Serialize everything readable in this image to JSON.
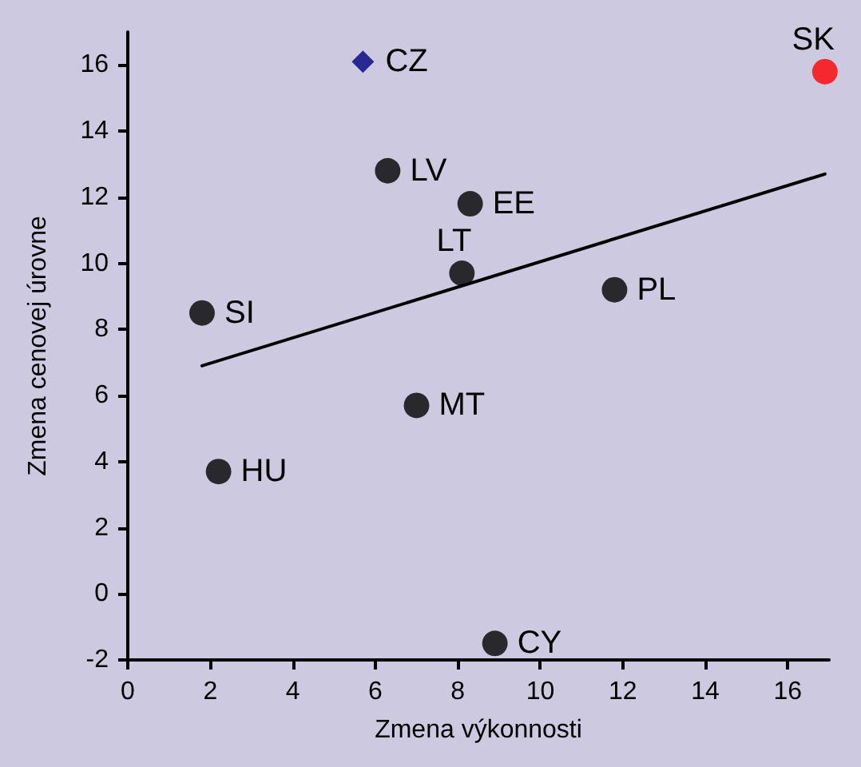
{
  "chart_data": {
    "type": "scatter",
    "xlabel": "Zmena výkonnosti",
    "ylabel": "Zmena cenovej úrovne",
    "xlim": [
      0,
      17
    ],
    "ylim": [
      -2,
      17
    ],
    "xticks": [
      0,
      2,
      4,
      6,
      8,
      10,
      12,
      14,
      16
    ],
    "yticks": [
      -2,
      0,
      2,
      4,
      6,
      8,
      10,
      12,
      14,
      16
    ],
    "grid": false,
    "marker": "circle",
    "series": [
      {
        "color": "#000000",
        "x": [
          1.8,
          2.2,
          7.0,
          8.9,
          8.1,
          6.3,
          8.3,
          11.8
        ],
        "values": [
          8.5,
          3.7,
          5.7,
          -1.5,
          9.7,
          12.8,
          11.8,
          9.2
        ]
      },
      {
        "color": "#000080",
        "marker": "diamond",
        "x": [
          5.7
        ],
        "values": [
          16.1
        ]
      },
      {
        "color": "#ff0000",
        "x": [
          16.9
        ],
        "values": [
          15.8
        ]
      },
      {
        "type": "line",
        "color": "#000000",
        "marker": "none",
        "line_style": "solid",
        "x": [
          1.8,
          16.9
        ],
        "values": [
          6.9,
          12.7
        ]
      }
    ],
    "annotations": [
      {
        "text": "SI",
        "x": 1.8,
        "y": 8.5
      },
      {
        "text": "HU",
        "x": 2.2,
        "y": 3.7
      },
      {
        "text": "MT",
        "x": 7.0,
        "y": 5.7
      },
      {
        "text": "CY",
        "x": 8.9,
        "y": -1.5
      },
      {
        "text": "LT",
        "x": 8.1,
        "y": 9.7
      },
      {
        "text": "LV",
        "x": 6.3,
        "y": 12.8
      },
      {
        "text": "EE",
        "x": 8.3,
        "y": 11.8
      },
      {
        "text": "PL",
        "x": 11.8,
        "y": 9.2
      },
      {
        "text": "CZ",
        "x": 5.7,
        "y": 16.1
      },
      {
        "text": "SK",
        "x": 16.9,
        "y": 15.8
      }
    ]
  }
}
